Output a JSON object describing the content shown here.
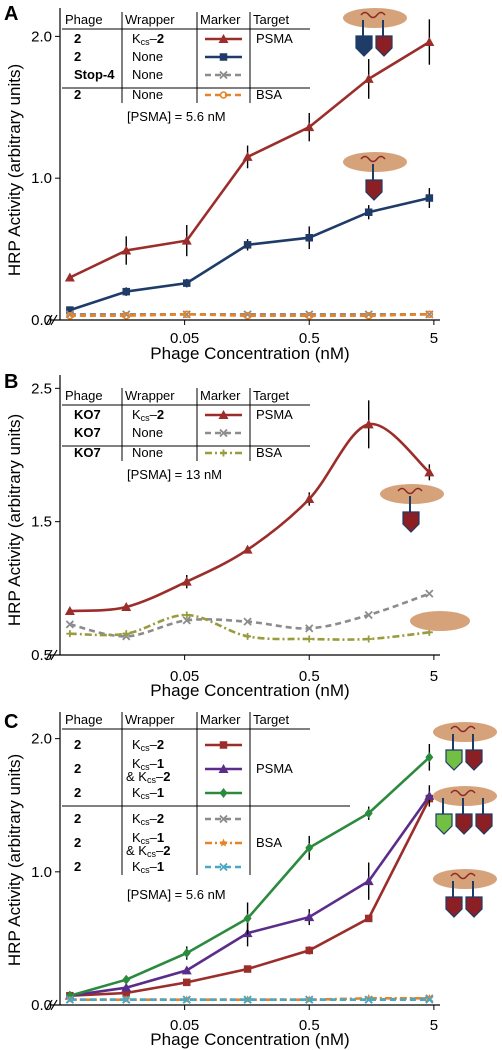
{
  "chart_data": [
    {
      "panel": "A",
      "type": "line",
      "xlabel": "Phage Concentration (nM)",
      "ylabel": "HRP Activity (arbitrary units)",
      "x_scale": "log",
      "xticks": [
        0.05,
        0.5,
        5
      ],
      "xtick_labels": [
        "0.05",
        "0.5",
        "5"
      ],
      "yticks": [
        0.0,
        1.0,
        2.0
      ],
      "ytick_labels": [
        "0.0",
        "1.0",
        "2.0"
      ],
      "ylim": [
        0,
        2.2
      ],
      "x": [
        0.006,
        0.017,
        0.052,
        0.16,
        0.5,
        1.5,
        4.6
      ],
      "series": [
        {
          "legend_index": 0,
          "color": "#9b2d2a",
          "marker": "triangle",
          "dash": "solid",
          "values": [
            0.3,
            0.49,
            0.56,
            1.15,
            1.36,
            1.7,
            1.96
          ],
          "err": [
            0,
            0.1,
            0.11,
            0.08,
            0.1,
            0.14,
            0.16
          ]
        },
        {
          "legend_index": 1,
          "color": "#1f3b68",
          "marker": "square",
          "dash": "solid",
          "values": [
            0.07,
            0.2,
            0.26,
            0.53,
            0.58,
            0.76,
            0.86
          ],
          "err": [
            0,
            0.03,
            0.03,
            0.04,
            0.08,
            0.05,
            0.07
          ]
        },
        {
          "legend_index": 2,
          "color": "#8c8c8c",
          "marker": "x",
          "dash": "dash",
          "values": [
            0.04,
            0.04,
            0.04,
            0.04,
            0.04,
            0.04,
            0.04
          ],
          "err": [
            0,
            0,
            0,
            0,
            0,
            0,
            0
          ]
        },
        {
          "legend_index": 3,
          "color": "#e6842a",
          "marker": "circle",
          "dash": "dash",
          "values": [
            0.03,
            0.03,
            0.04,
            0.03,
            0.03,
            0.03,
            0.04
          ],
          "err": [
            0,
            0,
            0,
            0,
            0,
            0,
            0
          ]
        }
      ],
      "legend": {
        "headers": [
          "Phage",
          "Wrapper",
          "Marker",
          "Target"
        ],
        "rows": [
          {
            "phage": "2",
            "wrapper": "Kcs–2",
            "target": "PSMA"
          },
          {
            "phage": "2",
            "wrapper": "None",
            "target": ""
          },
          {
            "phage": "Stop-4",
            "wrapper": "None",
            "target": ""
          },
          {
            "phage": "2",
            "wrapper": "None",
            "target": "BSA"
          }
        ]
      },
      "annotation": "[PSMA] = 5.6 nM"
    },
    {
      "panel": "B",
      "type": "line",
      "xlabel": "Phage Concentration (nM)",
      "ylabel": "HRP Activity (arbitrary units)",
      "x_scale": "log",
      "xticks": [
        0.05,
        0.5,
        5
      ],
      "xtick_labels": [
        "0.05",
        "0.5",
        "5"
      ],
      "yticks": [
        0.5,
        1.5,
        2.5
      ],
      "ytick_labels": [
        "0.5",
        "1.5",
        "2.5"
      ],
      "ylim": [
        0.5,
        2.6
      ],
      "x": [
        0.006,
        0.017,
        0.052,
        0.16,
        0.5,
        1.5,
        4.6
      ],
      "series": [
        {
          "legend_index": 0,
          "color": "#9b2d2a",
          "marker": "triangle",
          "dash": "solid",
          "values": [
            0.83,
            0.86,
            1.05,
            1.29,
            1.67,
            2.23,
            1.87
          ],
          "err": [
            0,
            0,
            0.05,
            0,
            0.05,
            0.18,
            0.06
          ]
        },
        {
          "legend_index": 1,
          "color": "#8c8c8c",
          "marker": "x",
          "dash": "dash",
          "values": [
            0.73,
            0.64,
            0.76,
            0.75,
            0.7,
            0.8,
            0.96
          ],
          "err": [
            0,
            0,
            0,
            0,
            0,
            0,
            0
          ]
        },
        {
          "legend_index": 2,
          "color": "#9a9b3e",
          "marker": "plus",
          "dash": "dashdot",
          "values": [
            0.66,
            0.66,
            0.8,
            0.64,
            0.62,
            0.62,
            0.67
          ],
          "err": [
            0,
            0,
            0,
            0,
            0,
            0,
            0
          ]
        }
      ],
      "legend": {
        "headers": [
          "Phage",
          "Wrapper",
          "Marker",
          "Target"
        ],
        "rows": [
          {
            "phage": "KO7",
            "wrapper": "Kcs–2",
            "target": "PSMA"
          },
          {
            "phage": "KO7",
            "wrapper": "None",
            "target": ""
          },
          {
            "phage": "KO7",
            "wrapper": "None",
            "target": "BSA"
          }
        ]
      },
      "annotation": "[PSMA] = 13 nM"
    },
    {
      "panel": "C",
      "type": "line",
      "xlabel": "Phage Concentration (nM)",
      "ylabel": "HRP Activity (arbitrary units)",
      "x_scale": "log",
      "xticks": [
        0.05,
        0.5,
        5
      ],
      "xtick_labels": [
        "0.05",
        "0.5",
        "5"
      ],
      "yticks": [
        0.0,
        1.0,
        2.0
      ],
      "ytick_labels": [
        "0.0",
        "1.0",
        "2.0"
      ],
      "ylim": [
        0,
        2.2
      ],
      "x": [
        0.006,
        0.017,
        0.052,
        0.16,
        0.5,
        1.5,
        4.6
      ],
      "series": [
        {
          "legend_index": 0,
          "color": "#9b2d2a",
          "marker": "square",
          "dash": "solid",
          "values": [
            0.07,
            0.09,
            0.17,
            0.27,
            0.41,
            0.65,
            1.55
          ],
          "err": [
            0,
            0,
            0,
            0,
            0.03,
            0,
            0
          ]
        },
        {
          "legend_index": 1,
          "color": "#5b2d8a",
          "marker": "triangle",
          "dash": "solid",
          "values": [
            0.07,
            0.13,
            0.26,
            0.54,
            0.66,
            0.93,
            1.57
          ],
          "err": [
            0,
            0,
            0,
            0.1,
            0.06,
            0.14,
            0.08
          ]
        },
        {
          "legend_index": 2,
          "color": "#2c8a3e",
          "marker": "diamond",
          "dash": "solid",
          "values": [
            0.07,
            0.19,
            0.39,
            0.65,
            1.18,
            1.44,
            1.86
          ],
          "err": [
            0,
            0,
            0.05,
            0.12,
            0.09,
            0.05,
            0.1
          ]
        },
        {
          "legend_index": 3,
          "color": "#8c8c8c",
          "marker": "x",
          "dash": "dash",
          "values": [
            0.04,
            0.04,
            0.04,
            0.04,
            0.04,
            0.04,
            0.05
          ],
          "err": [
            0,
            0,
            0,
            0,
            0,
            0,
            0
          ]
        },
        {
          "legend_index": 4,
          "color": "#e6842a",
          "marker": "star",
          "dash": "dashdot",
          "values": [
            0.04,
            0.04,
            0.04,
            0.04,
            0.04,
            0.05,
            0.05
          ],
          "err": [
            0,
            0,
            0,
            0,
            0,
            0,
            0
          ]
        },
        {
          "legend_index": 5,
          "color": "#4aa8c2",
          "marker": "x",
          "dash": "dash",
          "values": [
            0.04,
            0.04,
            0.04,
            0.04,
            0.04,
            0.04,
            0.04
          ],
          "err": [
            0,
            0,
            0,
            0,
            0,
            0,
            0
          ]
        }
      ],
      "legend": {
        "headers": [
          "Phage",
          "Wrapper",
          "Marker",
          "Target"
        ],
        "rows": [
          {
            "phage": "2",
            "wrapper": "Kcs–2",
            "wrapper2": "",
            "target": ""
          },
          {
            "phage": "2",
            "wrapper": "Kcs–1",
            "wrapper2": "& Kcs–2",
            "target": "PSMA"
          },
          {
            "phage": "2",
            "wrapper": "Kcs–1",
            "wrapper2": "",
            "target": ""
          },
          {
            "phage": "2",
            "wrapper": "Kcs–2",
            "wrapper2": "",
            "target": ""
          },
          {
            "phage": "2",
            "wrapper": "Kcs–1",
            "wrapper2": "& Kcs–2",
            "target": "BSA"
          },
          {
            "phage": "2",
            "wrapper": "Kcs–1",
            "wrapper2": "",
            "target": ""
          }
        ]
      },
      "annotation": "[PSMA] = 5.6 nM"
    }
  ]
}
